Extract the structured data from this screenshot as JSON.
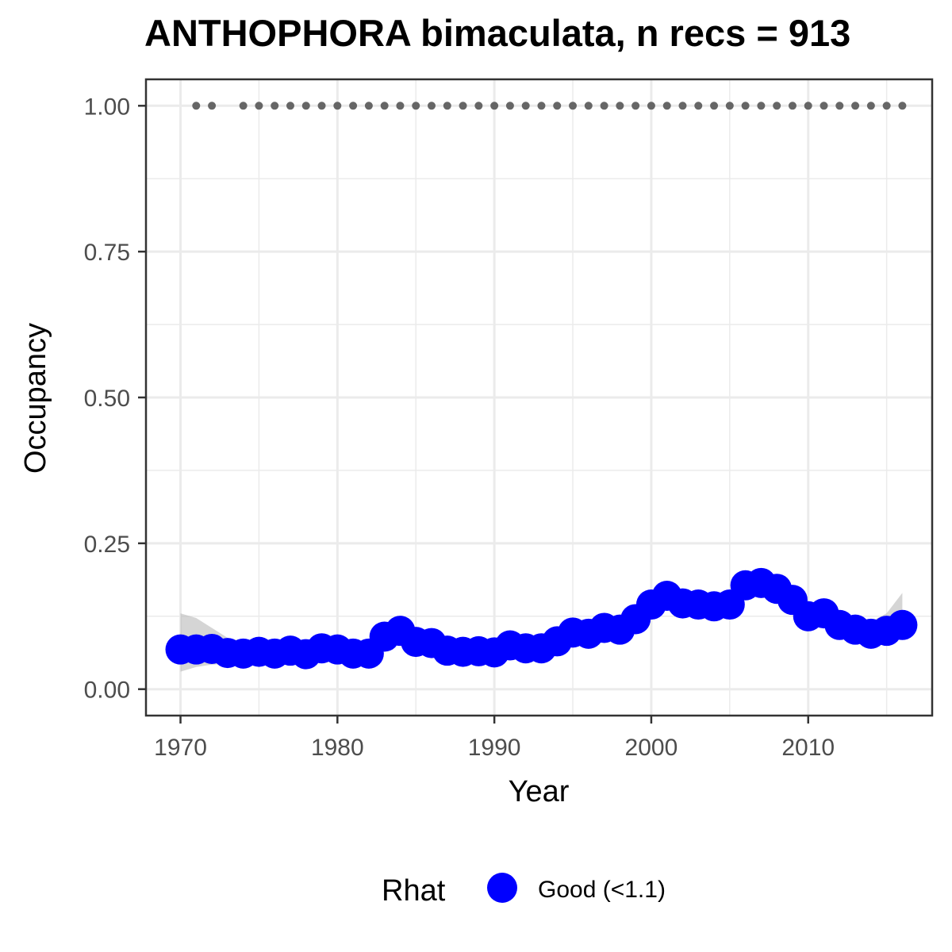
{
  "chart_data": {
    "type": "line",
    "title": "ANTHOPHORA bimaculata, n recs = 913",
    "xlabel": "Year",
    "ylabel": "Occupancy",
    "xlim": [
      1967.8,
      2017.9
    ],
    "ylim": [
      -0.0453,
      1.0453
    ],
    "x_ticks": [
      1970,
      1980,
      1990,
      2000,
      2010
    ],
    "x_tick_labels": [
      "1970",
      "1980",
      "1990",
      "2000",
      "2010"
    ],
    "y_ticks": [
      0,
      0.25,
      0.5,
      0.75,
      1.0
    ],
    "y_tick_labels": [
      "0.00",
      "0.25",
      "0.50",
      "0.75",
      "1.00"
    ],
    "grid": true,
    "series": [
      {
        "name": "Good (<1.1)",
        "color": "#0000ff",
        "x": [
          1970,
          1971,
          1972,
          1973,
          1974,
          1975,
          1976,
          1977,
          1978,
          1979,
          1980,
          1981,
          1982,
          1983,
          1984,
          1985,
          1986,
          1987,
          1988,
          1989,
          1990,
          1991,
          1992,
          1993,
          1994,
          1995,
          1996,
          1997,
          1998,
          1999,
          2000,
          2001,
          2002,
          2003,
          2004,
          2005,
          2006,
          2007,
          2008,
          2009,
          2010,
          2011,
          2012,
          2013,
          2014,
          2015,
          2016
        ],
        "y": [
          0.068,
          0.068,
          0.069,
          0.062,
          0.061,
          0.064,
          0.061,
          0.066,
          0.06,
          0.07,
          0.068,
          0.061,
          0.061,
          0.09,
          0.1,
          0.081,
          0.079,
          0.066,
          0.064,
          0.065,
          0.063,
          0.075,
          0.07,
          0.07,
          0.082,
          0.097,
          0.095,
          0.105,
          0.102,
          0.12,
          0.145,
          0.16,
          0.147,
          0.145,
          0.142,
          0.145,
          0.178,
          0.182,
          0.172,
          0.153,
          0.125,
          0.13,
          0.11,
          0.102,
          0.095,
          0.1,
          0.11
        ],
        "lower": [
          0.03,
          0.038,
          0.042,
          0.043,
          0.045,
          0.047,
          0.046,
          0.047,
          0.046,
          0.048,
          0.047,
          0.045,
          0.05,
          0.07,
          0.082,
          0.065,
          0.063,
          0.053,
          0.052,
          0.053,
          0.052,
          0.062,
          0.06,
          0.06,
          0.07,
          0.082,
          0.082,
          0.09,
          0.088,
          0.102,
          0.126,
          0.142,
          0.134,
          0.132,
          0.13,
          0.132,
          0.162,
          0.164,
          0.152,
          0.132,
          0.104,
          0.11,
          0.094,
          0.088,
          0.082,
          0.084,
          0.088
        ],
        "upper": [
          0.13,
          0.122,
          0.105,
          0.088,
          0.082,
          0.082,
          0.081,
          0.086,
          0.082,
          0.09,
          0.09,
          0.08,
          0.08,
          0.112,
          0.124,
          0.102,
          0.098,
          0.084,
          0.08,
          0.08,
          0.078,
          0.09,
          0.086,
          0.086,
          0.097,
          0.112,
          0.11,
          0.12,
          0.118,
          0.138,
          0.165,
          0.18,
          0.162,
          0.16,
          0.156,
          0.16,
          0.195,
          0.2,
          0.192,
          0.174,
          0.148,
          0.152,
          0.132,
          0.124,
          0.116,
          0.13,
          0.165
        ]
      }
    ],
    "detection_points": {
      "y": 1.0,
      "color": "#666666",
      "x": [
        1971,
        1972,
        1974,
        1975,
        1976,
        1977,
        1978,
        1979,
        1980,
        1981,
        1982,
        1983,
        1984,
        1985,
        1986,
        1987,
        1988,
        1989,
        1990,
        1991,
        1992,
        1993,
        1994,
        1995,
        1996,
        1997,
        1998,
        1999,
        2000,
        2001,
        2002,
        2003,
        2004,
        2005,
        2006,
        2007,
        2008,
        2009,
        2010,
        2011,
        2012,
        2013,
        2014,
        2015,
        2016
      ]
    },
    "legend": {
      "position": "bottom",
      "title": "Rhat",
      "entries": [
        {
          "label": "Good (<1.1)",
          "color": "#0000ff"
        }
      ]
    }
  }
}
